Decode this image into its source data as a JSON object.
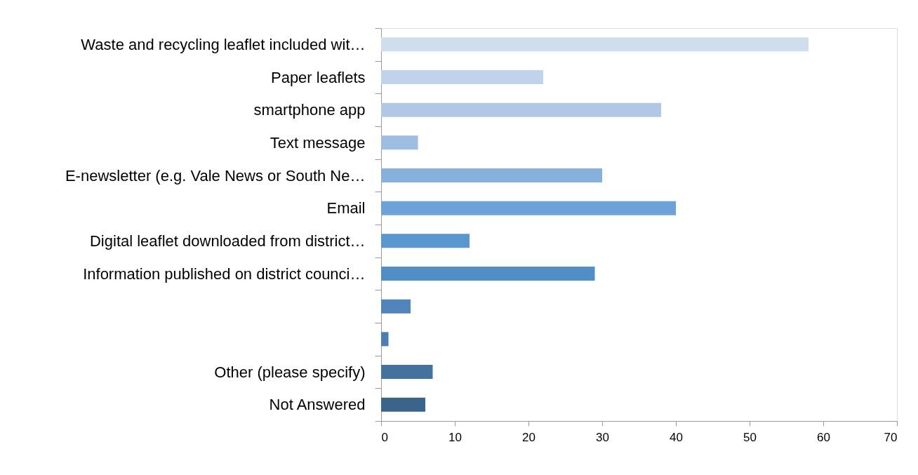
{
  "chart_data": {
    "type": "bar",
    "orientation": "horizontal",
    "categories": [
      "Waste and recycling leaflet included wit…",
      "Paper leaflets",
      "smartphone app",
      "Text message",
      "E-newsletter (e.g. Vale News or South Ne…",
      "Email",
      "Digital leaflet downloaded from district…",
      "Information published on district counci…",
      null,
      null,
      "Other (please specify)",
      "Not Answered"
    ],
    "values": [
      58,
      22,
      38,
      5,
      30,
      40,
      12,
      29,
      4,
      1,
      7,
      6
    ],
    "colors": [
      "#d0ddee",
      "#c1d3eb",
      "#b1c7e5",
      "#9dbde2",
      "#87b0dc",
      "#6ca2d8",
      "#5a97d0",
      "#528ec6",
      "#4f85ba",
      "#4b7eb3",
      "#43729e",
      "#3b648b"
    ],
    "xlim": [
      0,
      70
    ],
    "xticks": [
      0,
      10,
      20,
      30,
      40,
      50,
      60,
      70
    ]
  }
}
